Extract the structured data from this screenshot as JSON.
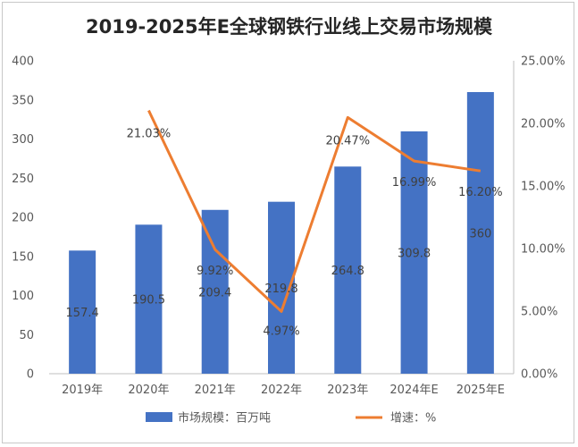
{
  "chart_data": {
    "type": "bar",
    "title": "2019-2025年E全球钢铁行业线上交易市场规模",
    "categories": [
      "2019年",
      "2020年",
      "2021年",
      "2022年",
      "2023年",
      "2024年E",
      "2025年E"
    ],
    "series": [
      {
        "name": "市场规模：百万吨",
        "type": "bar",
        "axis": "left",
        "color": "#4472C4",
        "values": [
          157.4,
          190.5,
          209.4,
          219.8,
          264.8,
          309.8,
          360
        ],
        "labels": [
          "157.4",
          "190.5",
          "209.4",
          "219.8",
          "264.8",
          "309.8",
          "360"
        ]
      },
      {
        "name": "增速：%",
        "type": "line",
        "axis": "right",
        "color": "#ED7D31",
        "values": [
          null,
          21.03,
          9.92,
          4.97,
          20.47,
          16.99,
          16.2
        ],
        "labels": [
          "",
          "21.03%",
          "9.92%",
          "4.97%",
          "20.47%",
          "16.99%",
          "16.20%"
        ]
      }
    ],
    "left_axis": {
      "min": 0,
      "max": 400,
      "ticks": [
        "0",
        "50",
        "100",
        "150",
        "200",
        "250",
        "300",
        "350",
        "400"
      ]
    },
    "right_axis": {
      "min": 0,
      "max": 25,
      "ticks": [
        "0.00%",
        "5.00%",
        "10.00%",
        "15.00%",
        "20.00%",
        "25.00%"
      ]
    },
    "grid": false,
    "legend": "bottom"
  }
}
